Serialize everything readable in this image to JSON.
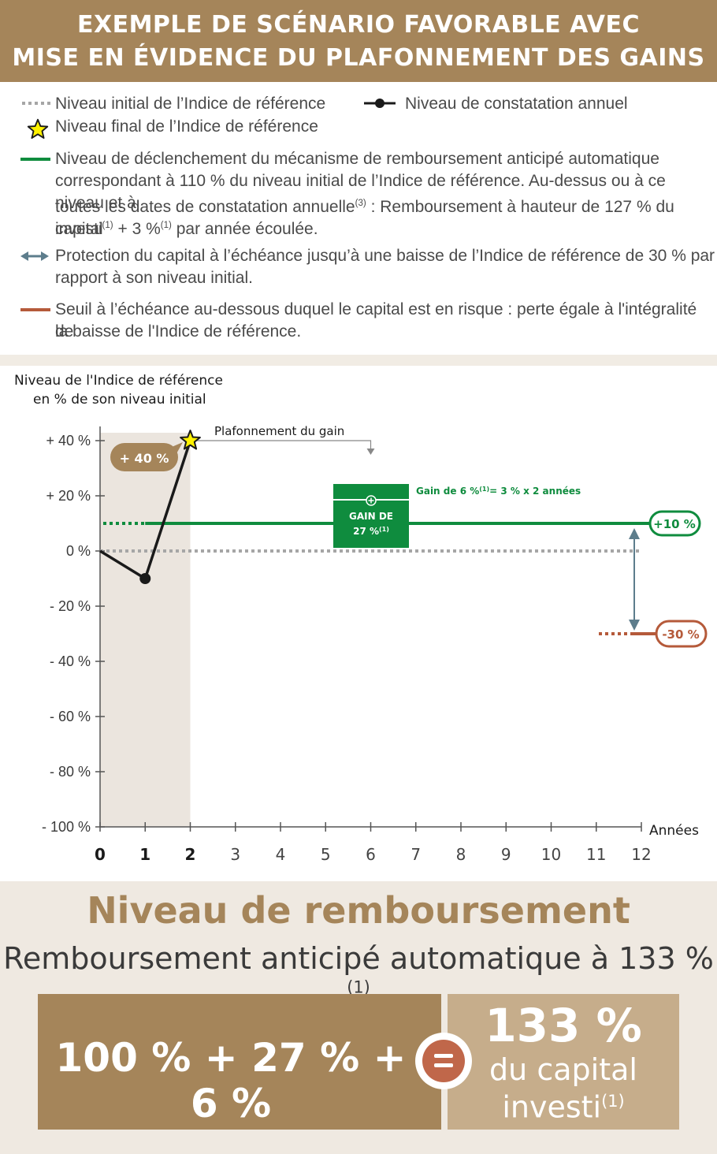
{
  "banner": {
    "line1": "EXEMPLE DE SCÉNARIO FAVORABLE AVEC",
    "line2": "MISE EN ÉVIDENCE DU PLAFONNEMENT DES GAINS"
  },
  "legend": {
    "initial_level": "Niveau initial de l’Indice de référence",
    "annual_observation": "Niveau de constatation annuel",
    "final_level": "Niveau final de l’Indice de référence",
    "trigger": {
      "line1": "Niveau de déclenchement du mécanisme de remboursement anticipé automatique",
      "line2": "correspondant à 110 % du niveau initial de l’Indice de référence. Au-dessus ou à ce niveau et à",
      "line3_a": "toutes les dates de constatation annuelle",
      "line3_sup": "(3)",
      "line3_b": " : Remboursement à hauteur de 127 % du capital",
      "line4_a": "investi",
      "line4_sup1": "(1)",
      "line4_b": " + 3 %",
      "line4_sup2": "(1)",
      "line4_c": " par année écoulée."
    },
    "protection": {
      "line1": "Protection du capital à l’échéance jusqu’à une baisse de l’Indice de référence de 30 % par",
      "line2": "rapport à son niveau initial."
    },
    "risk": {
      "line1": "Seuil à l’échéance au-dessous duquel le capital est en risque : perte égale à l'intégralité de",
      "line2": "la baisse de l'Indice de référence."
    }
  },
  "colors": {
    "brown": "#a5855a",
    "green": "#0f8c3e",
    "orange": "#b55a3a",
    "arrow": "#5d7d8c",
    "grey_dotted": "#a6a6a6",
    "shade": "#ebe5de"
  },
  "chart_data": {
    "type": "line",
    "ylabel_line1": "Niveau de l'Indice de référence",
    "ylabel_line2": "en % de son niveau initial",
    "xlabel": "Années",
    "ylim": [
      -100,
      40
    ],
    "xlim": [
      0,
      12
    ],
    "y_ticks": [
      40,
      20,
      0,
      -20,
      -40,
      -60,
      -80,
      -100
    ],
    "y_tick_labels": [
      "+ 40 %",
      "+ 20 %",
      "0 %",
      "- 20 %",
      "- 40 %",
      "- 60 %",
      "- 80 %",
      "- 100 %"
    ],
    "x_ticks": [
      0,
      1,
      2,
      3,
      4,
      5,
      6,
      7,
      8,
      9,
      10,
      11,
      12
    ],
    "x_tick_labels": [
      "0",
      "1",
      "2",
      "3",
      "4",
      "5",
      "6",
      "7",
      "8",
      "9",
      "10",
      "11",
      "12"
    ],
    "series": [
      {
        "x": [
          0,
          1,
          2
        ],
        "y": [
          0,
          -10,
          40
        ]
      }
    ],
    "shaded_x_range": [
      0,
      2
    ],
    "reference_lines": {
      "initial": 0,
      "trigger": 10,
      "risk_threshold": -30
    },
    "final_point": {
      "x": 2,
      "y": 40
    },
    "callout_final": "+ 40 %",
    "cap_label": "Plafonnement du gain",
    "gain_box_line1": "GAIN DE",
    "gain_box_line2": "27 %",
    "gain_box_sup": "(1)",
    "gain_note_a": "Gain de 6 %",
    "gain_note_sup": "(1)",
    "gain_note_b": "= 3 % x 2 années",
    "badge_trigger": "+10 %",
    "badge_risk": "-30 %"
  },
  "bottom": {
    "heading": "Niveau de remboursement",
    "subtitle": "Remboursement anticipé automatique à 133 %",
    "subtitle_sup": "(1)",
    "formula": "100 % + 27 % + 6 %",
    "result_big": "133 %",
    "result_line1": "du capital",
    "result_line2": "investi",
    "result_sup": "(1)"
  }
}
